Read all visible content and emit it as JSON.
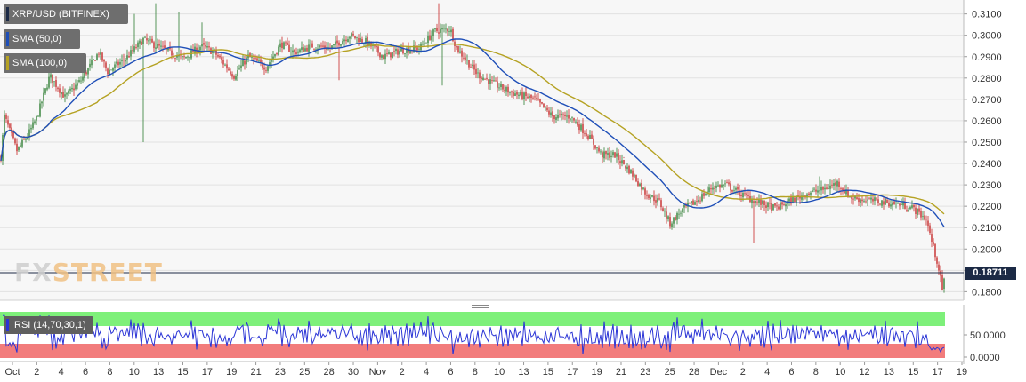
{
  "legend": {
    "title": "XRP/USD (BITFINEX)",
    "sma50": "SMA (50,0)",
    "sma100": "SMA (100,0)",
    "rsi": "RSI (14,70,30,1)"
  },
  "colors": {
    "sma50": "#1f4fb8",
    "sma100": "#b5a223",
    "up": "#2e7d32",
    "down": "#c62828",
    "rsi_line": "#2b35d6",
    "overbought": "#7ef07a",
    "oversold": "#f27c7c",
    "price_tag": "#1c2a45"
  },
  "watermark": {
    "part1": "FX",
    "part2": "STREET"
  },
  "current_price": "0.18711",
  "chart_data": {
    "type": "candlestick",
    "title": "XRP/USD (BITFINEX)",
    "timeframe_hint": "4h",
    "y_ticks": [
      "0.1800",
      "0.1900",
      "0.2000",
      "0.2100",
      "0.2200",
      "0.2300",
      "0.2400",
      "0.2500",
      "0.2600",
      "0.2700",
      "0.2800",
      "0.2900",
      "0.3000",
      "0.3100"
    ],
    "ylim": [
      0.176,
      0.3165
    ],
    "x_ticks": [
      "Oct",
      "2",
      "4",
      "6",
      "8",
      "10",
      "13",
      "15",
      "17",
      "19",
      "21",
      "23",
      "25",
      "28",
      "30",
      "Nov",
      "2",
      "4",
      "6",
      "8",
      "10",
      "13",
      "15",
      "17",
      "19",
      "21",
      "23",
      "25",
      "28",
      "Dec",
      "2",
      "4",
      "6",
      "8",
      "10",
      "12",
      "13",
      "15",
      "17",
      "19"
    ],
    "price_path_keypoints": [
      [
        0,
        0.243
      ],
      [
        4,
        0.262
      ],
      [
        18,
        0.246
      ],
      [
        30,
        0.253
      ],
      [
        40,
        0.261
      ],
      [
        55,
        0.281
      ],
      [
        72,
        0.271
      ],
      [
        90,
        0.279
      ],
      [
        110,
        0.292
      ],
      [
        120,
        0.283
      ],
      [
        140,
        0.289
      ],
      [
        160,
        0.298
      ],
      [
        185,
        0.293
      ],
      [
        205,
        0.289
      ],
      [
        225,
        0.295
      ],
      [
        240,
        0.292
      ],
      [
        262,
        0.281
      ],
      [
        278,
        0.29
      ],
      [
        298,
        0.285
      ],
      [
        315,
        0.296
      ],
      [
        330,
        0.292
      ],
      [
        350,
        0.295
      ],
      [
        370,
        0.294
      ],
      [
        392,
        0.3
      ],
      [
        410,
        0.297
      ],
      [
        430,
        0.29
      ],
      [
        450,
        0.293
      ],
      [
        470,
        0.294
      ],
      [
        488,
        0.302
      ],
      [
        505,
        0.303
      ],
      [
        512,
        0.294
      ],
      [
        520,
        0.29
      ],
      [
        535,
        0.282
      ],
      [
        555,
        0.277
      ],
      [
        575,
        0.273
      ],
      [
        600,
        0.27
      ],
      [
        620,
        0.262
      ],
      [
        640,
        0.262
      ],
      [
        660,
        0.253
      ],
      [
        675,
        0.244
      ],
      [
        690,
        0.244
      ],
      [
        708,
        0.236
      ],
      [
        725,
        0.226
      ],
      [
        740,
        0.222
      ],
      [
        752,
        0.212
      ],
      [
        765,
        0.218
      ],
      [
        780,
        0.222
      ],
      [
        800,
        0.229
      ],
      [
        815,
        0.23
      ],
      [
        830,
        0.226
      ],
      [
        850,
        0.222
      ],
      [
        870,
        0.219
      ],
      [
        885,
        0.222
      ],
      [
        905,
        0.226
      ],
      [
        925,
        0.228
      ],
      [
        940,
        0.231
      ],
      [
        955,
        0.224
      ],
      [
        970,
        0.223
      ],
      [
        990,
        0.222
      ],
      [
        1010,
        0.221
      ],
      [
        1025,
        0.219
      ],
      [
        1040,
        0.214
      ],
      [
        1047,
        0.202
      ],
      [
        1053,
        0.193
      ],
      [
        1058,
        0.181
      ],
      [
        1061,
        0.187
      ]
    ],
    "spikes": [
      {
        "idx": 150,
        "high": 0.31
      },
      {
        "idx": 175,
        "high": 0.315
      },
      {
        "idx": 200,
        "high": 0.311
      },
      {
        "idx": 226,
        "high": 0.306
      },
      {
        "idx": 160,
        "low": 0.25
      },
      {
        "idx": 380,
        "low": 0.279
      },
      {
        "idx": 492,
        "high": 0.315
      },
      {
        "idx": 496,
        "low": 0.2765
      },
      {
        "idx": 700,
        "low": 0.243
      },
      {
        "idx": 846,
        "low": 0.203
      },
      {
        "idx": 920,
        "high": 0.234
      }
    ],
    "rsi": {
      "overbought": 70,
      "oversold": 30,
      "y_ticks": [
        "50.0000",
        "0.0000"
      ]
    }
  }
}
